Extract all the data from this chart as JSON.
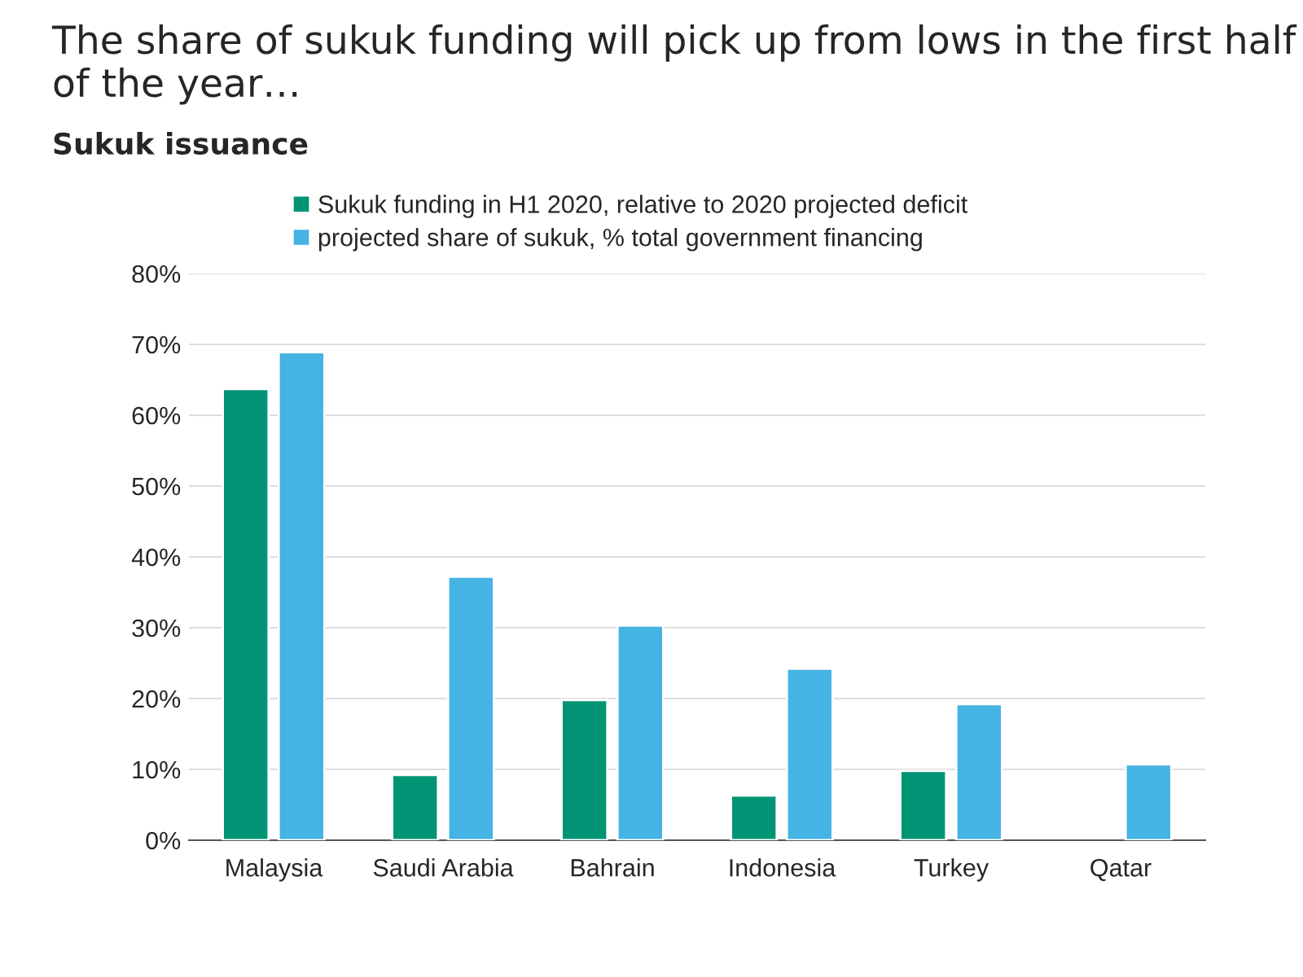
{
  "chart_data": {
    "type": "bar",
    "title": "The share of sukuk funding will pick up from lows in the first half of the year…",
    "subtitle": "Sukuk issuance",
    "categories": [
      "Malaysia",
      "Saudi Arabia",
      "Bahrain",
      "Indonesia",
      "Turkey",
      "Qatar"
    ],
    "series": [
      {
        "name": "Sukuk funding in H1 2020, relative to 2020 projected deficit",
        "color": "#009474",
        "values": [
          63.7,
          9.2,
          19.8,
          6.3,
          9.8,
          null
        ]
      },
      {
        "name": "projected share of sukuk, % total government financing",
        "color": "#45b3e3",
        "values": [
          68.9,
          37.2,
          30.3,
          24.2,
          19.2,
          10.7
        ]
      }
    ],
    "ylim": [
      0,
      80
    ],
    "yticks": [
      {
        "value": 0,
        "label": "0%"
      },
      {
        "value": 10,
        "label": "10%"
      },
      {
        "value": 20,
        "label": "20%"
      },
      {
        "value": 30,
        "label": "30%"
      },
      {
        "value": 40,
        "label": "40%"
      },
      {
        "value": 50,
        "label": "50%"
      },
      {
        "value": 60,
        "label": "60%"
      },
      {
        "value": 70,
        "label": "70%"
      },
      {
        "value": 80,
        "label": "80%"
      }
    ],
    "grid": "y",
    "legend": "top"
  }
}
